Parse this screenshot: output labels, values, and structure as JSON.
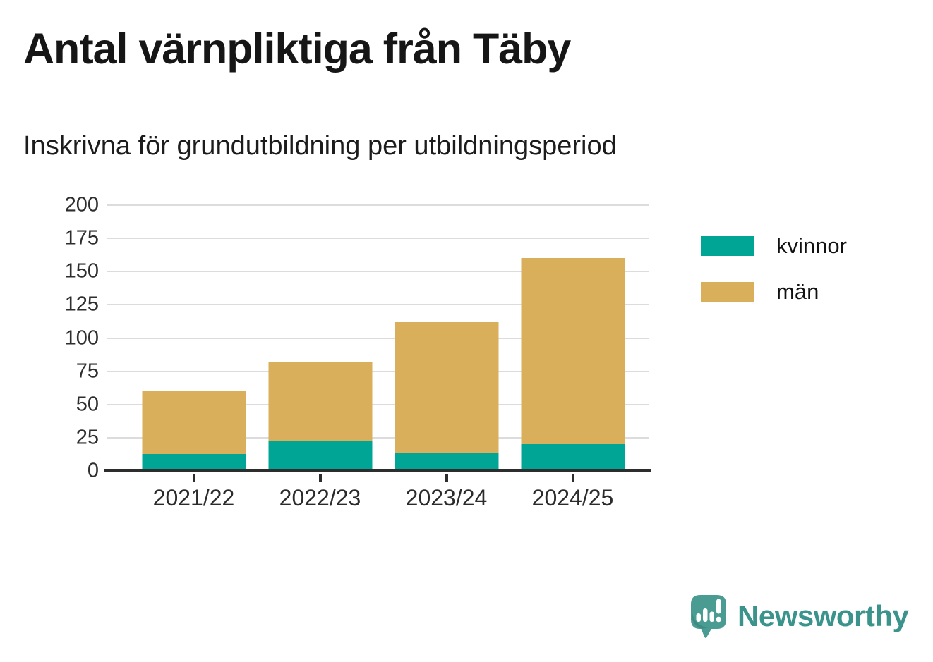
{
  "header": {
    "title": "Antal värnpliktiga från Täby",
    "subtitle": "Inskrivna för grundutbildning per utbildningsperiod"
  },
  "chart_data": {
    "type": "bar",
    "stacked": true,
    "title": "Antal värnpliktiga från Täby",
    "subtitle": "Inskrivna för grundutbildning per utbildningsperiod",
    "categories": [
      "2021/22",
      "2022/23",
      "2023/24",
      "2024/25"
    ],
    "series": [
      {
        "name": "kvinnor",
        "color": "#00a596",
        "values": [
          13,
          23,
          14,
          20
        ]
      },
      {
        "name": "män",
        "color": "#d9af5b",
        "values": [
          47,
          59,
          98,
          140
        ]
      }
    ],
    "stacked_totals": [
      60,
      82,
      112,
      160
    ],
    "xlabel": "",
    "ylabel": "",
    "ylim": [
      0,
      200
    ],
    "yticks": [
      0,
      25,
      50,
      75,
      100,
      125,
      150,
      175,
      200
    ],
    "grid": true,
    "legend_position": "right"
  },
  "legend": {
    "items": [
      {
        "label": "kvinnor",
        "color": "#00a596"
      },
      {
        "label": "män",
        "color": "#d9af5b"
      }
    ]
  },
  "branding": {
    "name": "Newsworthy",
    "color": "#3a948b",
    "icon_color": "#4a9c93"
  }
}
